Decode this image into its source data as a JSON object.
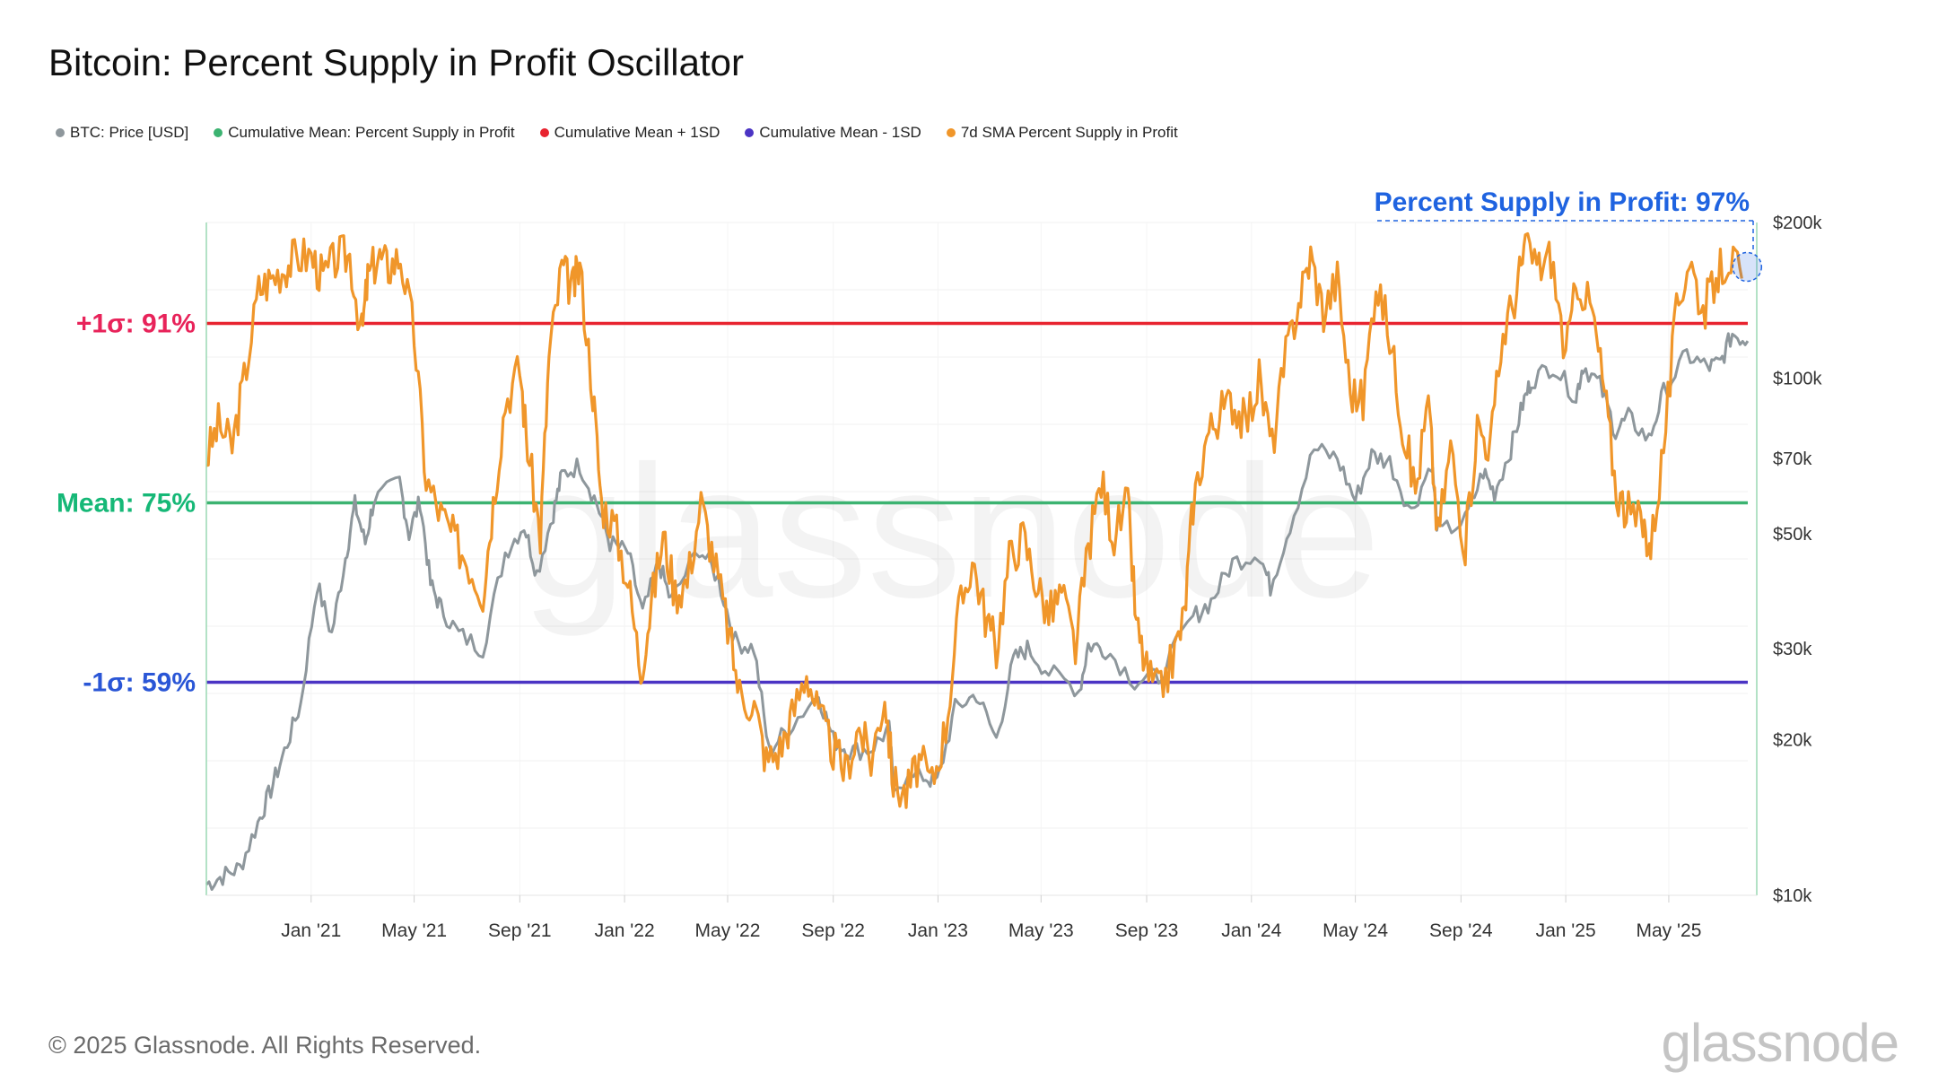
{
  "title": "Bitcoin: Percent Supply in Profit Oscillator",
  "copyright": "© 2025 Glassnode. All Rights Reserved.",
  "logo_text": "glassnode",
  "watermark_text": "glassnode",
  "colors": {
    "price": "#8e979c",
    "mean": "#3cb371",
    "plus": "#e8232f",
    "minus": "#4b34c4",
    "sma": "#f0962a",
    "callout": "#1f63e0",
    "plus_label": "#e8235a",
    "mean_label": "#16b877",
    "minus_label": "#2a56d6"
  },
  "legend": [
    {
      "label": "BTC: Price [USD]",
      "color": "#8e979c"
    },
    {
      "label": "Cumulative Mean: Percent Supply in Profit",
      "color": "#3cb371"
    },
    {
      "label": "Cumulative Mean + 1SD",
      "color": "#e8232f"
    },
    {
      "label": "Cumulative Mean - 1SD",
      "color": "#4b34c4"
    },
    {
      "label": "7d SMA Percent Supply in Profit",
      "color": "#f0962a"
    }
  ],
  "callout": {
    "text": "Percent Supply in Profit: 97%",
    "value": 97
  },
  "band_labels": {
    "plus": "+1σ: 91%",
    "mean": "Mean: 75%",
    "minus": "-1σ: 59%"
  },
  "chart_data": {
    "type": "line",
    "title": "Bitcoin: Percent Supply in Profit Oscillator",
    "x_ticks": [
      "Jan '21",
      "May '21",
      "Sep '21",
      "Jan '22",
      "May '22",
      "Sep '22",
      "Jan '23",
      "May '23",
      "Sep '23",
      "Jan '24",
      "May '24",
      "Sep '24",
      "Jan '25",
      "May '25"
    ],
    "x_range": [
      "2020-09-01",
      "2025-08-01"
    ],
    "y_left_range": [
      40,
      100
    ],
    "y_right": {
      "scale": "log",
      "range": [
        10000,
        200000
      ],
      "ticks": [
        "$200k",
        "$100k",
        "$70k",
        "$50k",
        "$30k",
        "$20k",
        "$10k"
      ],
      "tick_values": [
        200000,
        100000,
        70000,
        50000,
        30000,
        20000,
        10000
      ]
    },
    "grid": true,
    "legend_position": "top-left",
    "reference_lines": [
      {
        "name": "Cumulative Mean + 1SD",
        "value": 91
      },
      {
        "name": "Cumulative Mean: Percent Supply in Profit",
        "value": 75
      },
      {
        "name": "Cumulative Mean - 1SD",
        "value": 59
      }
    ],
    "series": [
      {
        "name": "7d SMA Percent Supply in Profit",
        "axis": "left",
        "points": [
          [
            "2020-09-01",
            79
          ],
          [
            "2020-09-15",
            82
          ],
          [
            "2020-10-01",
            80
          ],
          [
            "2020-10-15",
            86
          ],
          [
            "2020-11-01",
            94
          ],
          [
            "2020-11-15",
            95
          ],
          [
            "2020-12-01",
            96
          ],
          [
            "2020-12-15",
            97
          ],
          [
            "2021-01-01",
            97
          ],
          [
            "2021-01-15",
            95
          ],
          [
            "2021-02-01",
            97
          ],
          [
            "2021-02-15",
            97
          ],
          [
            "2021-03-01",
            90
          ],
          [
            "2021-03-08",
            95
          ],
          [
            "2021-03-20",
            97
          ],
          [
            "2021-04-01",
            96
          ],
          [
            "2021-04-15",
            97
          ],
          [
            "2021-05-01",
            90
          ],
          [
            "2021-05-15",
            77
          ],
          [
            "2021-06-01",
            74
          ],
          [
            "2021-06-15",
            72
          ],
          [
            "2021-07-01",
            70
          ],
          [
            "2021-07-20",
            67
          ],
          [
            "2021-08-01",
            75
          ],
          [
            "2021-08-15",
            84
          ],
          [
            "2021-09-01",
            87
          ],
          [
            "2021-09-10",
            80
          ],
          [
            "2021-09-25",
            72
          ],
          [
            "2021-10-05",
            88
          ],
          [
            "2021-10-20",
            96
          ],
          [
            "2021-11-01",
            94
          ],
          [
            "2021-11-10",
            96
          ],
          [
            "2021-11-25",
            85
          ],
          [
            "2021-12-05",
            75
          ],
          [
            "2021-12-20",
            73
          ],
          [
            "2022-01-05",
            68
          ],
          [
            "2022-01-20",
            60
          ],
          [
            "2022-02-01",
            66
          ],
          [
            "2022-02-15",
            72
          ],
          [
            "2022-03-01",
            67
          ],
          [
            "2022-03-15",
            68
          ],
          [
            "2022-03-31",
            75
          ],
          [
            "2022-04-15",
            70
          ],
          [
            "2022-05-01",
            64
          ],
          [
            "2022-05-15",
            58
          ],
          [
            "2022-06-01",
            57
          ],
          [
            "2022-06-15",
            52
          ],
          [
            "2022-07-01",
            53
          ],
          [
            "2022-07-15",
            56
          ],
          [
            "2022-08-01",
            60
          ],
          [
            "2022-08-15",
            56
          ],
          [
            "2022-09-01",
            53
          ],
          [
            "2022-09-15",
            51
          ],
          [
            "2022-10-01",
            55
          ],
          [
            "2022-10-15",
            52
          ],
          [
            "2022-10-31",
            58
          ],
          [
            "2022-11-10",
            50
          ],
          [
            "2022-11-25",
            49
          ],
          [
            "2022-12-10",
            52
          ],
          [
            "2022-12-25",
            50
          ],
          [
            "2023-01-10",
            55
          ],
          [
            "2023-01-25",
            65
          ],
          [
            "2023-02-10",
            70
          ],
          [
            "2023-02-25",
            65
          ],
          [
            "2023-03-10",
            62
          ],
          [
            "2023-03-25",
            70
          ],
          [
            "2023-04-10",
            72
          ],
          [
            "2023-04-25",
            68
          ],
          [
            "2023-05-10",
            65
          ],
          [
            "2023-05-25",
            67
          ],
          [
            "2023-06-10",
            62
          ],
          [
            "2023-06-25",
            71
          ],
          [
            "2023-07-10",
            77
          ],
          [
            "2023-07-25",
            72
          ],
          [
            "2023-08-10",
            75
          ],
          [
            "2023-08-20",
            64
          ],
          [
            "2023-09-01",
            60
          ],
          [
            "2023-09-15",
            58
          ],
          [
            "2023-10-01",
            61
          ],
          [
            "2023-10-15",
            65
          ],
          [
            "2023-10-25",
            75
          ],
          [
            "2023-11-10",
            81
          ],
          [
            "2023-11-25",
            83
          ],
          [
            "2023-12-10",
            84
          ],
          [
            "2023-12-25",
            82
          ],
          [
            "2024-01-10",
            86
          ],
          [
            "2024-01-25",
            80
          ],
          [
            "2024-02-10",
            88
          ],
          [
            "2024-02-25",
            93
          ],
          [
            "2024-03-10",
            97
          ],
          [
            "2024-03-25",
            92
          ],
          [
            "2024-04-10",
            95
          ],
          [
            "2024-04-25",
            85
          ],
          [
            "2024-05-10",
            84
          ],
          [
            "2024-05-25",
            95
          ],
          [
            "2024-06-10",
            90
          ],
          [
            "2024-06-25",
            82
          ],
          [
            "2024-07-10",
            76
          ],
          [
            "2024-07-25",
            84
          ],
          [
            "2024-08-05",
            72
          ],
          [
            "2024-08-20",
            80
          ],
          [
            "2024-09-06",
            71
          ],
          [
            "2024-09-20",
            82
          ],
          [
            "2024-10-05",
            80
          ],
          [
            "2024-10-20",
            90
          ],
          [
            "2024-11-05",
            94
          ],
          [
            "2024-11-15",
            98
          ],
          [
            "2024-12-01",
            96
          ],
          [
            "2024-12-15",
            97
          ],
          [
            "2025-01-01",
            88
          ],
          [
            "2025-01-15",
            95
          ],
          [
            "2025-02-01",
            92
          ],
          [
            "2025-02-15",
            85
          ],
          [
            "2025-03-01",
            76
          ],
          [
            "2025-03-15",
            74
          ],
          [
            "2025-04-01",
            73
          ],
          [
            "2025-04-10",
            71
          ],
          [
            "2025-04-25",
            80
          ],
          [
            "2025-05-10",
            92
          ],
          [
            "2025-05-25",
            97
          ],
          [
            "2025-06-10",
            92
          ],
          [
            "2025-06-25",
            95
          ],
          [
            "2025-07-10",
            97
          ],
          [
            "2025-07-25",
            95
          ]
        ]
      },
      {
        "name": "BTC: Price [USD]",
        "axis": "right",
        "points": [
          [
            "2020-09-01",
            10500
          ],
          [
            "2020-09-20",
            10900
          ],
          [
            "2020-10-10",
            11300
          ],
          [
            "2020-10-31",
            13800
          ],
          [
            "2020-11-15",
            16000
          ],
          [
            "2020-12-01",
            19000
          ],
          [
            "2020-12-20",
            23500
          ],
          [
            "2021-01-08",
            40000
          ],
          [
            "2021-01-25",
            32000
          ],
          [
            "2021-02-10",
            45000
          ],
          [
            "2021-02-21",
            57000
          ],
          [
            "2021-03-05",
            48000
          ],
          [
            "2021-03-15",
            58000
          ],
          [
            "2021-04-14",
            63000
          ],
          [
            "2021-04-25",
            50000
          ],
          [
            "2021-05-08",
            58000
          ],
          [
            "2021-05-20",
            40000
          ],
          [
            "2021-06-01",
            36000
          ],
          [
            "2021-06-22",
            32000
          ],
          [
            "2021-07-20",
            30000
          ],
          [
            "2021-08-15",
            46000
          ],
          [
            "2021-09-06",
            52000
          ],
          [
            "2021-09-21",
            42000
          ],
          [
            "2021-10-10",
            55000
          ],
          [
            "2021-10-20",
            65000
          ],
          [
            "2021-11-10",
            68000
          ],
          [
            "2021-11-30",
            57000
          ],
          [
            "2021-12-15",
            48000
          ],
          [
            "2022-01-05",
            46000
          ],
          [
            "2022-01-22",
            35000
          ],
          [
            "2022-02-10",
            44000
          ],
          [
            "2022-02-24",
            37000
          ],
          [
            "2022-03-29",
            47000
          ],
          [
            "2022-04-20",
            41000
          ],
          [
            "2022-05-10",
            31000
          ],
          [
            "2022-06-01",
            30000
          ],
          [
            "2022-06-18",
            19000
          ],
          [
            "2022-07-10",
            21000
          ],
          [
            "2022-08-15",
            24500
          ],
          [
            "2022-09-01",
            20000
          ],
          [
            "2022-09-20",
            19000
          ],
          [
            "2022-10-15",
            19200
          ],
          [
            "2022-11-05",
            21000
          ],
          [
            "2022-11-10",
            16500
          ],
          [
            "2022-12-15",
            17000
          ],
          [
            "2022-12-31",
            16500
          ],
          [
            "2023-01-21",
            23000
          ],
          [
            "2023-02-15",
            24500
          ],
          [
            "2023-03-10",
            20000
          ],
          [
            "2023-03-30",
            28500
          ],
          [
            "2023-04-15",
            30000
          ],
          [
            "2023-05-10",
            27000
          ],
          [
            "2023-06-15",
            25000
          ],
          [
            "2023-06-25",
            30500
          ],
          [
            "2023-07-15",
            30000
          ],
          [
            "2023-08-18",
            26000
          ],
          [
            "2023-09-15",
            26500
          ],
          [
            "2023-10-25",
            34500
          ],
          [
            "2023-11-15",
            37000
          ],
          [
            "2023-12-10",
            44000
          ],
          [
            "2024-01-10",
            46000
          ],
          [
            "2024-01-23",
            39500
          ],
          [
            "2024-02-15",
            52000
          ],
          [
            "2024-03-14",
            73000
          ],
          [
            "2024-04-10",
            70000
          ],
          [
            "2024-05-01",
            58000
          ],
          [
            "2024-05-20",
            71000
          ],
          [
            "2024-06-10",
            69000
          ],
          [
            "2024-07-05",
            55000
          ],
          [
            "2024-07-29",
            69000
          ],
          [
            "2024-08-05",
            50000
          ],
          [
            "2024-09-06",
            53000
          ],
          [
            "2024-09-27",
            66000
          ],
          [
            "2024-10-10",
            60000
          ],
          [
            "2024-10-29",
            73000
          ],
          [
            "2024-11-12",
            89000
          ],
          [
            "2024-11-22",
            99000
          ],
          [
            "2024-12-17",
            106000
          ],
          [
            "2025-01-13",
            92000
          ],
          [
            "2025-01-21",
            106000
          ],
          [
            "2025-02-10",
            97000
          ],
          [
            "2025-02-28",
            79000
          ],
          [
            "2025-03-15",
            84000
          ],
          [
            "2025-04-08",
            76000
          ],
          [
            "2025-04-25",
            94000
          ],
          [
            "2025-05-22",
            111000
          ],
          [
            "2025-06-15",
            105000
          ],
          [
            "2025-06-30",
            107000
          ],
          [
            "2025-07-14",
            122000
          ],
          [
            "2025-08-01",
            118000
          ]
        ]
      }
    ]
  }
}
